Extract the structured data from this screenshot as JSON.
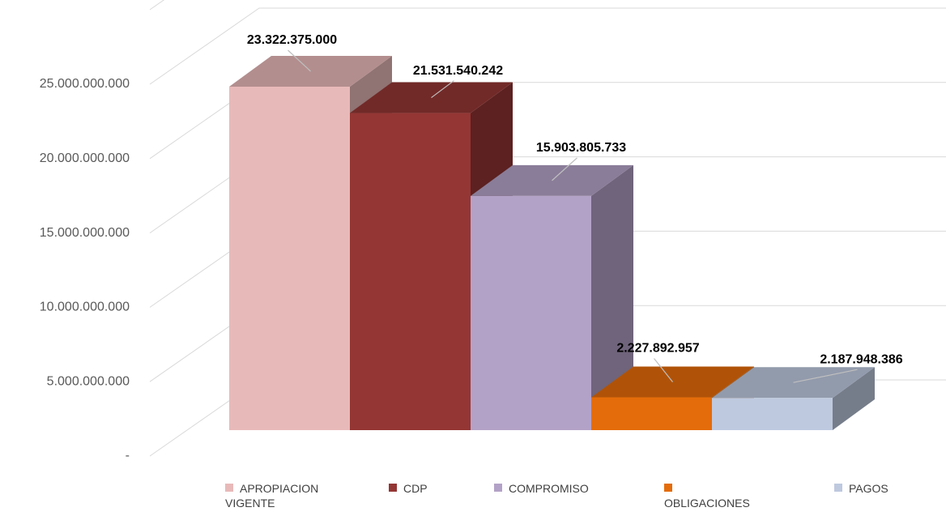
{
  "chart_data": {
    "type": "bar3d",
    "series": [
      {
        "name": "APROPIACION VIGENTE",
        "color": "#e8b9b9",
        "values": [
          23322375000
        ],
        "value_labels": [
          "23.322.375.000"
        ]
      },
      {
        "name": "CDP",
        "color": "#943634",
        "values": [
          21531540242
        ],
        "value_labels": [
          "21.531.540.242"
        ]
      },
      {
        "name": "COMPROMISO",
        "color": "#b3a2c7",
        "values": [
          15903805733
        ],
        "value_labels": [
          "15.903.805.733"
        ]
      },
      {
        "name": "OBLIGACIONES",
        "color": "#e46c0a",
        "values": [
          2227892957
        ],
        "value_labels": [
          "2.227.892.957"
        ]
      },
      {
        "name": "PAGOS",
        "color": "#bec9df",
        "values": [
          2187948386
        ],
        "value_labels": [
          "2.187.948.386"
        ]
      }
    ],
    "ylim": [
      0,
      25000000000
    ],
    "yticks": [
      {
        "value": 0,
        "label": "-"
      },
      {
        "value": 5000000000,
        "label": "5.000.000.000"
      },
      {
        "value": 10000000000,
        "label": "10.000.000.000"
      },
      {
        "value": 15000000000,
        "label": "15.000.000.000"
      },
      {
        "value": 20000000000,
        "label": "20.000.000.000"
      },
      {
        "value": 25000000000,
        "label": "25.000.000.000"
      }
    ],
    "grid": true
  }
}
